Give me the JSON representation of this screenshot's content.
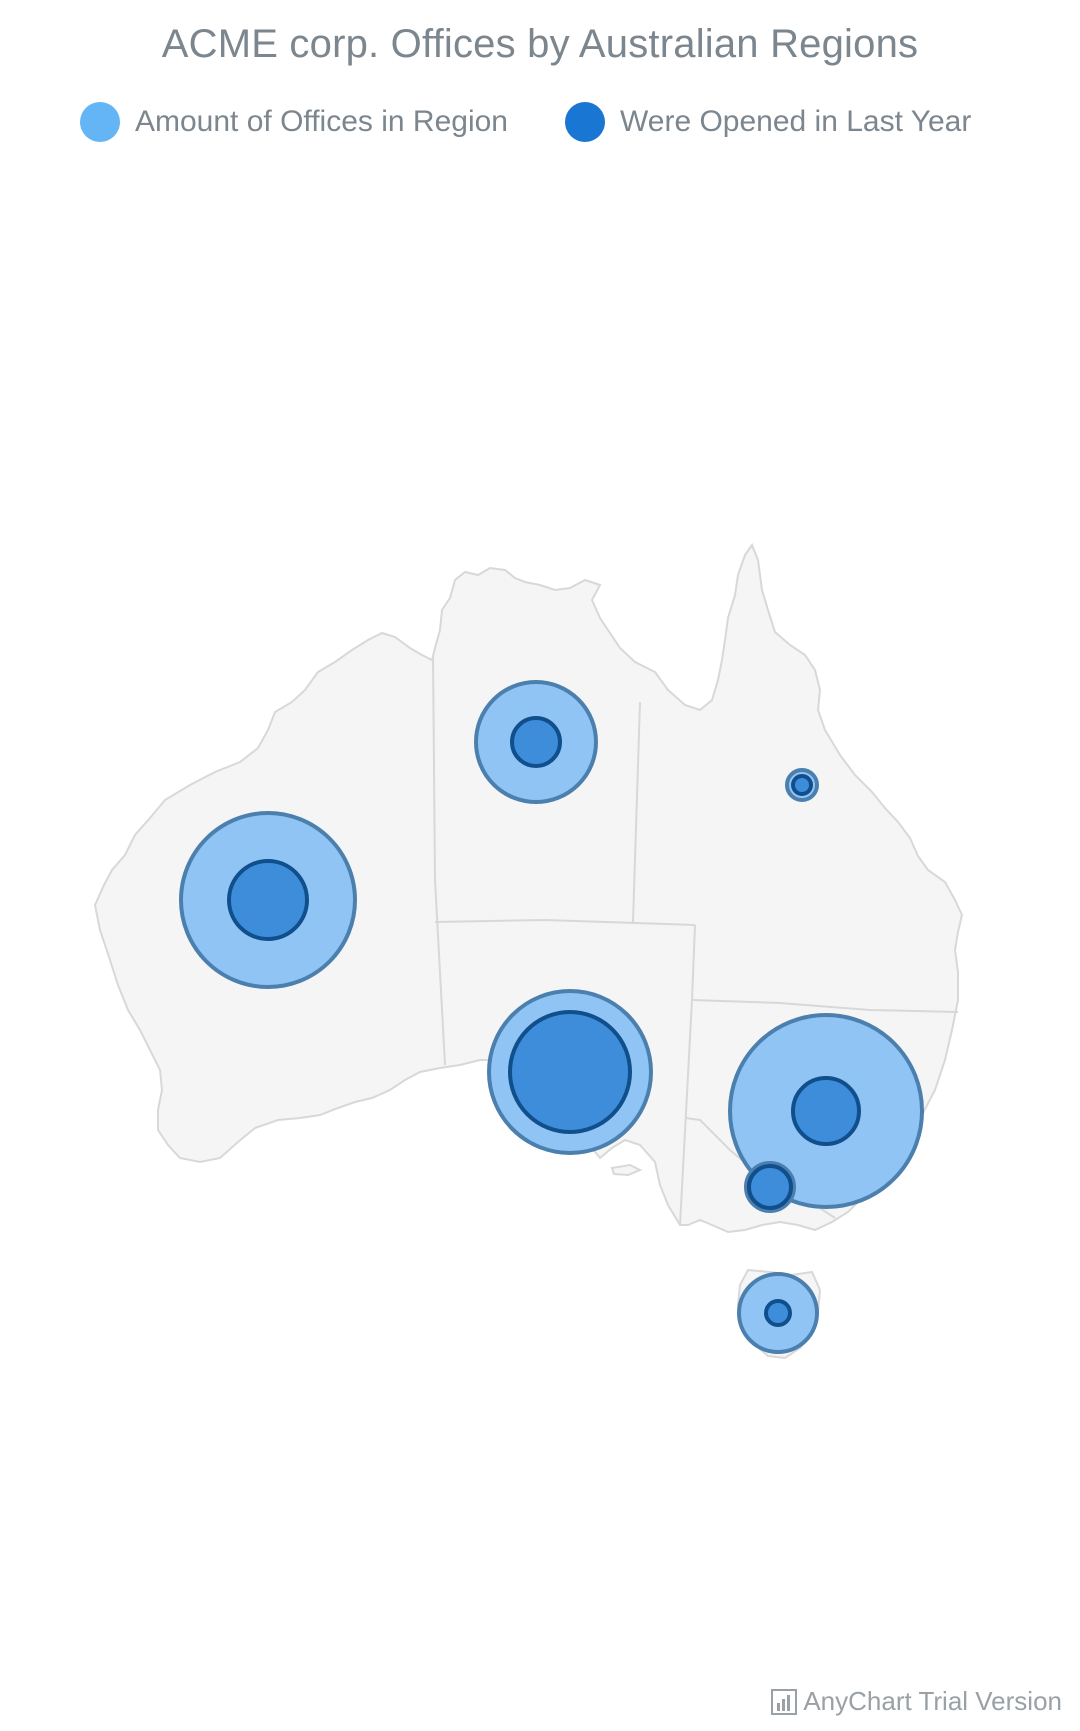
{
  "title": "ACME corp. Offices by Australian Regions",
  "legend": [
    {
      "label": "Amount of Offices in Region",
      "color": "#64b5f6"
    },
    {
      "label": "Were Opened in Last Year",
      "color": "#1976d2"
    }
  ],
  "watermark": {
    "text": "AnyChart Trial Version",
    "icon": "bar-chart-icon"
  },
  "colors": {
    "land_fill": "#f5f5f5",
    "land_stroke": "#d8d8d8",
    "outer_bubble_fill": "#90c4f4",
    "outer_bubble_stroke": "#4a7fae",
    "inner_bubble_fill": "#3d8ddb",
    "inner_bubble_stroke": "#114f8c"
  },
  "chart_data": {
    "type": "bubble-map",
    "region": "Australia",
    "series": [
      {
        "name": "Amount of Offices in Region",
        "points": [
          {
            "region": "Western Australia",
            "size": 29
          },
          {
            "region": "Northern Territory",
            "size": 20
          },
          {
            "region": "South Australia",
            "size": 27
          },
          {
            "region": "Queensland",
            "size": 5
          },
          {
            "region": "New South Wales",
            "size": 32
          },
          {
            "region": "Victoria",
            "size": 8
          },
          {
            "region": "Tasmania",
            "size": 13
          }
        ]
      },
      {
        "name": "Were Opened in Last Year",
        "points": [
          {
            "region": "Western Australia",
            "size": 13
          },
          {
            "region": "Northern Territory",
            "size": 8
          },
          {
            "region": "South Australia",
            "size": 20
          },
          {
            "region": "Queensland",
            "size": 3
          },
          {
            "region": "New South Wales",
            "size": 11
          },
          {
            "region": "Victoria",
            "size": 7
          },
          {
            "region": "Tasmania",
            "size": 4
          }
        ]
      }
    ]
  }
}
